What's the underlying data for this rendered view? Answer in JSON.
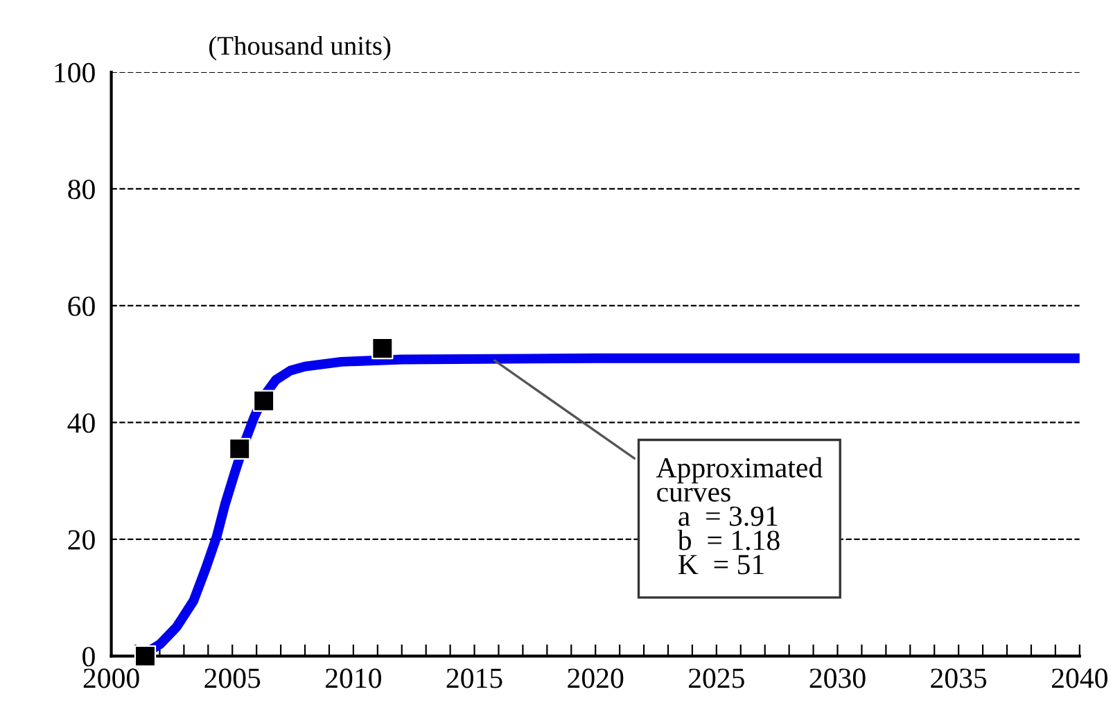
{
  "chart_data": {
    "type": "line",
    "ylabel": "(Thousand units)",
    "series": [
      {
        "color": "#0000ee",
        "marker": "none",
        "x": [
          2001.4,
          2002,
          2002.7,
          2003.4,
          2003.9,
          2004.35,
          2004.7,
          2005.1,
          2005.5,
          2005.9,
          2006.3,
          2006.8,
          2007.4,
          2008,
          2009.5,
          2012,
          2020,
          2040
        ],
        "values": [
          0.5,
          2,
          5,
          9.5,
          15,
          20.4,
          26,
          31.4,
          36.5,
          40.9,
          44.5,
          47.3,
          48.9,
          49.6,
          50.4,
          50.8,
          51,
          51
        ]
      },
      {
        "type": "scatter",
        "color": "#000000",
        "marker": "square",
        "x": [
          2001.4,
          2005.3,
          2006.3,
          2011.2
        ],
        "values": [
          0,
          35.5,
          43.7,
          52.7
        ]
      }
    ],
    "annotations": [
      {
        "text": "Approximated\ncurves\n   a  = 3.91\n   b  = 1.18\n   K  = 51",
        "x": 2015.7,
        "y": 51
      }
    ],
    "xlim": [
      2000,
      2040
    ],
    "ylim": [
      0,
      100
    ],
    "xticks": [
      2000,
      {
        "value": 2001,
        "label": null
      },
      {
        "value": 2002,
        "label": null
      },
      {
        "value": 2003,
        "label": null
      },
      {
        "value": 2004,
        "label": null
      },
      2005,
      {
        "value": 2006,
        "label": null
      },
      {
        "value": 2007,
        "label": null
      },
      {
        "value": 2008,
        "label": null
      },
      {
        "value": 2009,
        "label": null
      },
      2010,
      {
        "value": 2011,
        "label": null
      },
      {
        "value": 2012,
        "label": null
      },
      {
        "value": 2013,
        "label": null
      },
      {
        "value": 2014,
        "label": null
      },
      2015,
      {
        "value": 2016,
        "label": null
      },
      {
        "value": 2017,
        "label": null
      },
      {
        "value": 2018,
        "label": null
      },
      {
        "value": 2019,
        "label": null
      },
      2020,
      {
        "value": 2021,
        "label": null
      },
      {
        "value": 2022,
        "label": null
      },
      {
        "value": 2023,
        "label": null
      },
      {
        "value": 2024,
        "label": null
      },
      2025,
      {
        "value": 2026,
        "label": null
      },
      {
        "value": 2027,
        "label": null
      },
      {
        "value": 2028,
        "label": null
      },
      {
        "value": 2029,
        "label": null
      },
      2030,
      {
        "value": 2031,
        "label": null
      },
      {
        "value": 2032,
        "label": null
      },
      {
        "value": 2033,
        "label": null
      },
      {
        "value": 2034,
        "label": null
      },
      2035,
      {
        "value": 2036,
        "label": null
      },
      {
        "value": 2037,
        "label": null
      },
      {
        "value": 2038,
        "label": null
      },
      {
        "value": 2039,
        "label": null
      },
      2040
    ],
    "yticks": [
      0,
      20,
      40,
      60,
      80,
      100
    ],
    "grid": "y",
    "line_style": "solid",
    "legend": false
  }
}
